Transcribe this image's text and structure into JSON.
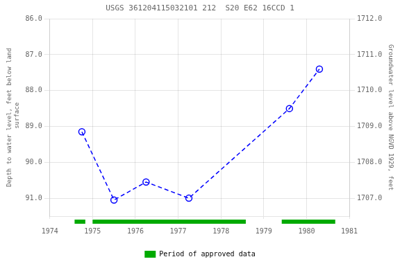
{
  "chart_data": {
    "type": "line",
    "title": "USGS 361204115032101 212  S20 E62 16CCD 1",
    "x": [
      1974.75,
      1975.5,
      1976.25,
      1977.25,
      1979.6,
      1980.3
    ],
    "values": [
      89.15,
      91.05,
      90.55,
      91.0,
      88.5,
      87.4
    ],
    "color": "#0000ff",
    "marker": "circle",
    "line_style": "dashed",
    "xlim": [
      1974,
      1981
    ],
    "xticks": [
      1974,
      1975,
      1976,
      1977,
      1978,
      1979,
      1980,
      1981
    ],
    "ylim": [
      91.5,
      86.0
    ],
    "yticks": [
      {
        "value": 86.0,
        "label": "86.0"
      },
      {
        "value": 87.0,
        "label": "87.0"
      },
      {
        "value": 88.0,
        "label": "88.0"
      },
      {
        "value": 89.0,
        "label": "89.0"
      },
      {
        "value": 90.0,
        "label": "90.0"
      },
      {
        "value": 91.0,
        "label": "91.0"
      }
    ],
    "ylabel": "Depth to water level, feet below land\n surface",
    "y2lim": [
      1706.5,
      1712.0
    ],
    "y2ticks": [
      {
        "value": 1707.0,
        "label": "1707.0"
      },
      {
        "value": 1708.0,
        "label": "1708.0"
      },
      {
        "value": 1709.0,
        "label": "1709.0"
      },
      {
        "value": 1710.0,
        "label": "1710.0"
      },
      {
        "value": 1711.0,
        "label": "1711.0"
      },
      {
        "value": 1712.0,
        "label": "1712.0"
      }
    ],
    "y2label": "Groundwater level above NGVD 1929, feet",
    "spans": {
      "name": "Period of approved data",
      "color": "#00aa00",
      "ranges": [
        {
          "start": 1974.58,
          "end": 1974.83
        },
        {
          "start": 1975.0,
          "end": 1978.58
        },
        {
          "start": 1979.42,
          "end": 1980.67
        }
      ]
    },
    "legend": "bottom",
    "grid": true
  }
}
